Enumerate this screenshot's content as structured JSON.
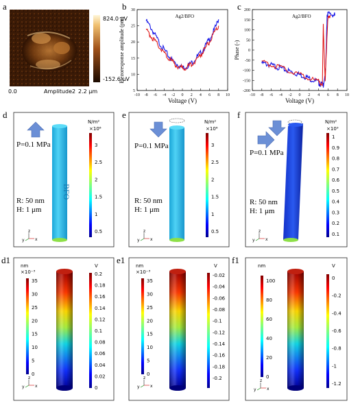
{
  "panel_letters": {
    "a": "a",
    "b": "b",
    "c": "c",
    "d": "d",
    "e": "e",
    "f": "f",
    "d1": "d1",
    "e1": "e1",
    "f1": "f1"
  },
  "afm": {
    "bar_max": "824.0 μV",
    "bar_min": "-152.6 μV",
    "x_start": "0.0",
    "x_end": "2.2 μm",
    "channel": "Amplitude2"
  },
  "chart_data": [
    {
      "type": "line",
      "title": "Ag2/BFO",
      "xlabel": "Voltage (V)",
      "ylabel": "Piezoresponse amplitude (pm)",
      "xlim": [
        -10,
        10
      ],
      "ylim": [
        5,
        30
      ],
      "xticks": [
        -10,
        -8,
        -6,
        -4,
        -2,
        0,
        2,
        4,
        6,
        8,
        10
      ],
      "yticks": [
        5,
        10,
        15,
        20,
        25,
        30
      ],
      "series": [
        {
          "color": "#1414e6",
          "x": [
            -8,
            -7,
            -6,
            -5,
            -4,
            -3,
            -2,
            -1,
            0,
            1,
            2,
            3,
            4,
            5,
            6,
            7,
            8
          ],
          "values": [
            26.5,
            24.5,
            22,
            19.5,
            17.5,
            15.5,
            14,
            13,
            12,
            12.5,
            13.5,
            15,
            16.5,
            18.5,
            21,
            23.5,
            27
          ]
        },
        {
          "color": "#e01818",
          "x": [
            -8,
            -7,
            -6,
            -5,
            -4,
            -3,
            -2,
            -1,
            0,
            1,
            2,
            3,
            4,
            5,
            6,
            7,
            8
          ],
          "values": [
            23.5,
            22,
            20,
            18.5,
            16.5,
            15,
            13.5,
            12.5,
            12,
            12.2,
            13,
            14.5,
            16,
            18,
            20,
            22.5,
            25
          ]
        }
      ]
    },
    {
      "type": "line",
      "title": "Ag2/BFO",
      "xlabel": "Voltage (V)",
      "ylabel": "Phase (-)",
      "xlim": [
        -10,
        10
      ],
      "ylim": [
        -200,
        200
      ],
      "xticks": [
        -10,
        -8,
        -6,
        -4,
        -2,
        0,
        2,
        4,
        6,
        8,
        10
      ],
      "yticks": [
        -200,
        -150,
        -100,
        -50,
        0,
        50,
        100,
        150,
        200
      ],
      "series": [
        {
          "color": "#1414e6",
          "x": [
            -8,
            -7,
            -6,
            -5,
            -4,
            -3,
            -2,
            -1,
            0,
            1,
            2,
            3,
            4,
            4.5,
            5,
            5.5,
            5.8,
            6,
            7,
            7.5
          ],
          "values": [
            -65,
            -70,
            -75,
            -82,
            -90,
            -98,
            -106,
            -114,
            -122,
            -130,
            -140,
            -150,
            -162,
            -168,
            -172,
            -100,
            175,
            178,
            175,
            172
          ]
        },
        {
          "color": "#e01818",
          "x": [
            -8,
            -6,
            -4,
            -2,
            0,
            2,
            4,
            4.8,
            5,
            5.4,
            6,
            6.5
          ],
          "values": [
            -62,
            -72,
            -88,
            -104,
            -120,
            -138,
            -158,
            -165,
            120,
            -150,
            172,
            172
          ]
        }
      ]
    }
  ],
  "stress_row": {
    "pressure": "P=0.1 MPa",
    "radius": "R: 50 nm",
    "height": "H: 1 μm",
    "material": "BFO",
    "unit": "N/m²",
    "scale_de": "×10⁶",
    "scale_f": "×10⁹",
    "ticks_de": [
      "3",
      "2.5",
      "2",
      "1.5",
      "1",
      "0.5"
    ],
    "ticks_f": [
      "1",
      "0.9",
      "0.8",
      "0.7",
      "0.6",
      "0.5",
      "0.4",
      "0.3",
      "0.2",
      "0.1"
    ]
  },
  "disp_row": {
    "d1": {
      "unit_nm": "nm",
      "scale": "×10⁻³",
      "nm_ticks": [
        "35",
        "30",
        "25",
        "20",
        "15",
        "10",
        "5",
        "0"
      ],
      "unit_v": "V",
      "v_ticks": [
        "0.2",
        "0.18",
        "0.16",
        "0.14",
        "0.12",
        "0.1",
        "0.08",
        "0.06",
        "0.04",
        "0.02",
        "0"
      ]
    },
    "e1": {
      "unit_nm": "nm",
      "scale": "×10⁻³",
      "nm_ticks": [
        "35",
        "30",
        "25",
        "20",
        "15",
        "10",
        "5",
        "0"
      ],
      "unit_v": "V",
      "v_ticks": [
        "-0.02",
        "-0.04",
        "-0.06",
        "-0.08",
        "-0.1",
        "-0.12",
        "-0.14",
        "-0.16",
        "-0.18",
        "-0.2"
      ]
    },
    "f1": {
      "unit_nm": "nm",
      "scale": "",
      "nm_ticks": [
        "100",
        "80",
        "60",
        "40",
        "20",
        "0"
      ],
      "unit_v": "V",
      "v_ticks": [
        "0",
        "-0.2",
        "-0.4",
        "-0.6",
        "-0.8",
        "-1",
        "-1.2"
      ]
    }
  },
  "axes_triad": {
    "z": "z",
    "y": "y",
    "x": "x"
  }
}
